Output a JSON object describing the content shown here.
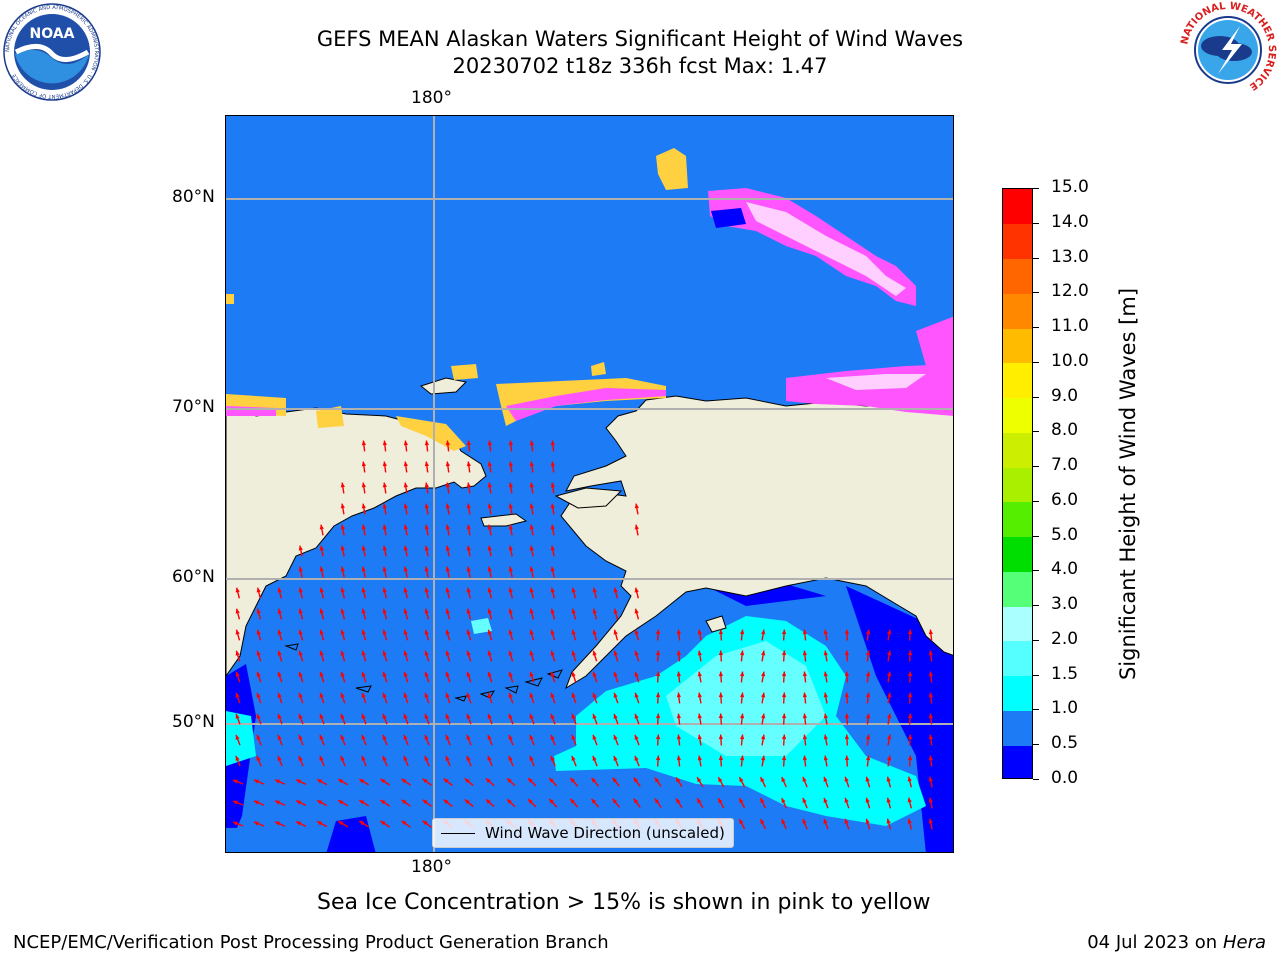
{
  "header": {
    "title_line1": "GEFS MEAN Alaskan Waters Significant Height of Wind Waves",
    "title_line2": "20230702 t18z 336h fcst   Max: 1.47"
  },
  "map": {
    "lon_label_top": "180°",
    "lon_label_bottom": "180°",
    "lat_labels": [
      "80°N",
      "70°N",
      "60°N",
      "50°N"
    ],
    "legend_text": "Wind Wave Direction (unscaled)",
    "colors": {
      "land": "#efeedb",
      "ocean_low": "#0000ff",
      "ocean_mid": "#1d7bf6",
      "ocean_cyan": "#66ffff",
      "ocean_cyan2": "#00ffff",
      "ice_pink": "#ff55ff",
      "ice_yellow": "#ffd040",
      "arrow": "#ff0000",
      "grid": "#b0b0b0"
    }
  },
  "colorbar": {
    "label": "Significant Height of Wind Waves [m]",
    "ticks": [
      "0.0",
      "0.5",
      "1.0",
      "1.5",
      "2.0",
      "3.0",
      "4.0",
      "5.0",
      "6.0",
      "7.0",
      "8.0",
      "9.0",
      "10.0",
      "11.0",
      "12.0",
      "13.0",
      "14.0",
      "15.0"
    ],
    "colors": [
      "#0000ff",
      "#1d7bf6",
      "#00ffff",
      "#55ffff",
      "#aaffff",
      "#55ff77",
      "#00dd00",
      "#55ee00",
      "#aaee00",
      "#ccee00",
      "#eeff00",
      "#ffee00",
      "#ffbb00",
      "#ff8800",
      "#ff6600",
      "#ff3300",
      "#ff0000"
    ]
  },
  "note": "Sea Ice Concentration > 15% is shown in pink to yellow",
  "footer": {
    "left": "NCEP/EMC/Verification Post Processing Product Generation Branch",
    "right_date": "04 Jul 2023 on ",
    "right_machine": "Hera"
  },
  "logos": {
    "noaa_text": "NOAA",
    "noaa_ring": "NATIONAL OCEANIC AND ATMOSPHERIC ADMINISTRATION · U.S. DEPARTMENT OF COMMERCE",
    "nws_ring": "NATIONAL WEATHER SERVICE"
  }
}
